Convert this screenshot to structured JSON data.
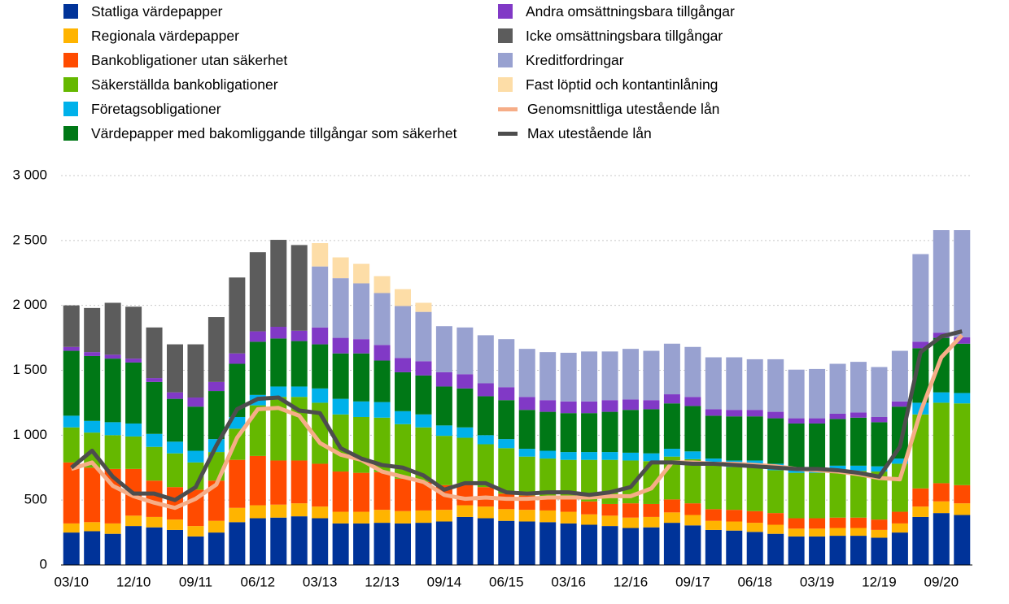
{
  "chart_data": {
    "type": "bar",
    "stacked": true,
    "categories": [
      "03/10",
      null,
      null,
      "12/10",
      null,
      null,
      "09/11",
      null,
      null,
      "06/12",
      null,
      null,
      "03/13",
      null,
      null,
      "12/13",
      null,
      null,
      "09/14",
      null,
      null,
      "06/15",
      null,
      null,
      "03/16",
      null,
      null,
      "12/16",
      null,
      null,
      "09/17",
      null,
      null,
      "06/18",
      null,
      null,
      "03/19",
      null,
      null,
      "12/19",
      null,
      null,
      "09/20",
      null
    ],
    "ylim": [
      0,
      3000
    ],
    "yticks": [
      0,
      500,
      {
        "value": 1000,
        "label": "1 000"
      },
      {
        "value": 1500,
        "label": "1 500"
      },
      {
        "value": 2000,
        "label": "2 000"
      },
      {
        "value": 2500,
        "label": "2 500"
      },
      {
        "value": 3000,
        "label": "3 000"
      }
    ],
    "grid": true,
    "series": [
      {
        "name": "Statliga värdepapper",
        "color": "#003399",
        "values": [
          250,
          260,
          240,
          300,
          290,
          270,
          220,
          250,
          330,
          360,
          365,
          375,
          360,
          320,
          320,
          325,
          320,
          325,
          335,
          370,
          360,
          340,
          335,
          330,
          320,
          310,
          300,
          285,
          290,
          325,
          305,
          270,
          265,
          255,
          240,
          220,
          220,
          225,
          225,
          210,
          250,
          370,
          400,
          385
        ]
      },
      {
        "name": "Regionala värdepapper",
        "color": "#FFB400",
        "values": [
          70,
          70,
          80,
          80,
          80,
          80,
          80,
          90,
          110,
          100,
          100,
          100,
          90,
          90,
          90,
          100,
          95,
          95,
          90,
          90,
          90,
          90,
          90,
          90,
          90,
          80,
          80,
          80,
          80,
          80,
          80,
          70,
          70,
          70,
          70,
          60,
          60,
          60,
          60,
          60,
          70,
          80,
          90,
          90
        ]
      },
      {
        "name": "Bankobligationer utan säkerhet",
        "color": "#FF4B00",
        "values": [
          470,
          420,
          420,
          360,
          280,
          250,
          280,
          310,
          370,
          380,
          340,
          330,
          330,
          310,
          300,
          290,
          250,
          220,
          190,
          170,
          150,
          120,
          110,
          100,
          100,
          100,
          90,
          110,
          100,
          100,
          90,
          90,
          90,
          90,
          90,
          80,
          80,
          80,
          80,
          80,
          90,
          140,
          140,
          140
        ]
      },
      {
        "name": "Säkerställda bankobligationer",
        "color": "#65B800",
        "values": [
          270,
          270,
          260,
          250,
          260,
          260,
          210,
          220,
          240,
          390,
          490,
          490,
          470,
          440,
          430,
          420,
          420,
          420,
          380,
          350,
          330,
          350,
          300,
          300,
          300,
          320,
          340,
          330,
          330,
          330,
          340,
          340,
          330,
          340,
          330,
          350,
          350,
          360,
          360,
          370,
          370,
          570,
          620,
          630
        ]
      },
      {
        "name": "Företagsobligationer",
        "color": "#00B1EA",
        "values": [
          90,
          90,
          100,
          100,
          100,
          90,
          90,
          100,
          90,
          80,
          80,
          80,
          110,
          120,
          120,
          120,
          100,
          100,
          80,
          80,
          70,
          70,
          60,
          60,
          60,
          60,
          60,
          60,
          60,
          60,
          60,
          50,
          50,
          50,
          50,
          40,
          40,
          40,
          40,
          40,
          40,
          90,
          80,
          80
        ]
      },
      {
        "name": "Värdepapper med bakomliggande tillgångar som säkerhet",
        "color": "#007816",
        "values": [
          500,
          500,
          490,
          470,
          400,
          330,
          340,
          370,
          410,
          410,
          370,
          350,
          340,
          350,
          370,
          320,
          300,
          300,
          300,
          300,
          300,
          300,
          300,
          300,
          300,
          300,
          310,
          330,
          340,
          350,
          350,
          330,
          340,
          340,
          350,
          340,
          340,
          360,
          370,
          340,
          400,
          420,
          420,
          380
        ]
      },
      {
        "name": "Andra omsättningsbara tillgångar",
        "color": "#8139C6",
        "values": [
          30,
          30,
          30,
          30,
          30,
          50,
          70,
          70,
          80,
          80,
          90,
          80,
          130,
          120,
          110,
          120,
          110,
          110,
          110,
          110,
          100,
          100,
          100,
          90,
          90,
          90,
          90,
          80,
          70,
          70,
          70,
          50,
          50,
          50,
          50,
          40,
          40,
          40,
          40,
          40,
          40,
          50,
          40,
          50
        ]
      },
      {
        "name": "Icke omsättningsbara tillgångar",
        "color": "#5C5C5C",
        "values": [
          320,
          340,
          400,
          400,
          390,
          370,
          410,
          500,
          585,
          610,
          670,
          660,
          0,
          0,
          0,
          0,
          0,
          0,
          0,
          0,
          0,
          0,
          0,
          0,
          0,
          0,
          0,
          0,
          0,
          0,
          0,
          0,
          0,
          0,
          0,
          0,
          0,
          0,
          0,
          0,
          0,
          0,
          0,
          0
        ]
      },
      {
        "name": "Kreditfordringar",
        "color": "#98A1D0",
        "values": [
          0,
          0,
          0,
          0,
          0,
          0,
          0,
          0,
          0,
          0,
          0,
          0,
          470,
          460,
          430,
          400,
          400,
          380,
          355,
          360,
          370,
          370,
          370,
          370,
          375,
          385,
          375,
          390,
          380,
          390,
          385,
          400,
          405,
          390,
          405,
          375,
          380,
          385,
          390,
          385,
          390,
          675,
          790,
          825
        ]
      },
      {
        "name": "Fast löptid och kontantinlåning",
        "color": "#FDDDA7",
        "values": [
          0,
          0,
          0,
          0,
          0,
          0,
          0,
          0,
          0,
          0,
          0,
          0,
          180,
          160,
          150,
          130,
          130,
          70,
          0,
          0,
          0,
          0,
          0,
          0,
          0,
          0,
          0,
          0,
          0,
          0,
          0,
          0,
          0,
          0,
          0,
          0,
          0,
          0,
          0,
          0,
          0,
          0,
          0,
          0
        ]
      },
      {
        "name": "Genomsnittliga utestående lån",
        "color": "#F6AD87",
        "type": "line",
        "values": [
          740,
          790,
          610,
          530,
          480,
          440,
          510,
          620,
          980,
          1200,
          1210,
          1150,
          940,
          850,
          810,
          720,
          680,
          640,
          540,
          510,
          520,
          510,
          510,
          520,
          520,
          520,
          530,
          530,
          590,
          790,
          790,
          780,
          780,
          770,
          760,
          740,
          730,
          720,
          700,
          670,
          660,
          1180,
          1600,
          1770
        ]
      },
      {
        "name": "Max utestående lån",
        "color": "#4D4D4D",
        "type": "line",
        "values": [
          750,
          880,
          680,
          550,
          550,
          500,
          600,
          920,
          1200,
          1280,
          1290,
          1190,
          1170,
          900,
          820,
          770,
          750,
          690,
          580,
          630,
          630,
          560,
          550,
          560,
          560,
          540,
          560,
          600,
          790,
          790,
          780,
          780,
          770,
          760,
          750,
          740,
          740,
          730,
          710,
          680,
          910,
          1640,
          1760,
          1800
        ]
      }
    ]
  }
}
